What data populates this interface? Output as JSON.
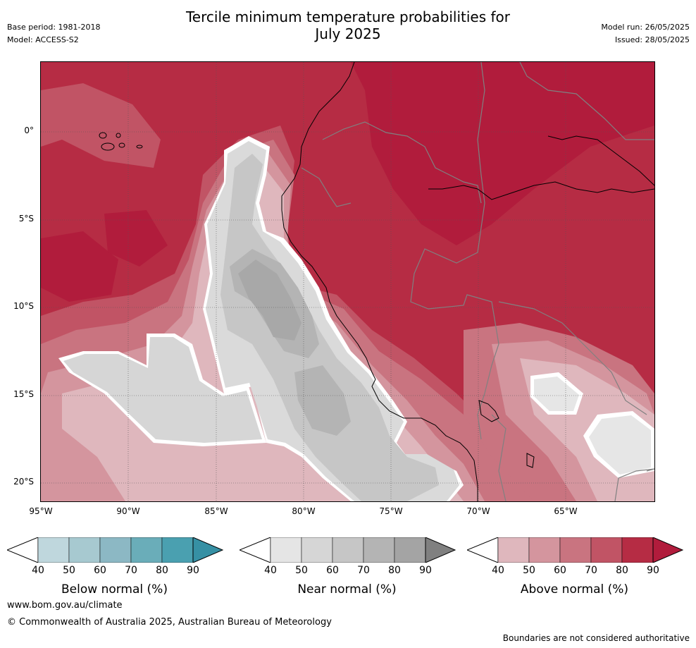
{
  "header": {
    "title_line1": "Tercile minimum temperature probabilities for",
    "title_line2": "July 2025",
    "base_period": "Base period: 1981-2018",
    "model": "Model: ACCESS-S2",
    "model_run": "Model run: 26/05/2025",
    "issued": "Issued: 28/05/2025"
  },
  "map": {
    "lat_labels": [
      "0°",
      "5°S",
      "10°S",
      "15°S",
      "20°S"
    ],
    "lon_labels": [
      "95°W",
      "90°W",
      "85°W",
      "80°W",
      "75°W",
      "70°W",
      "65°W"
    ],
    "colors": {
      "above": [
        "#dfb7bd",
        "#d4959e",
        "#c97480",
        "#c15465",
        "#b62c44",
        "#b11c3c"
      ],
      "near": [
        "#e6e6e6",
        "#d6d6d6",
        "#c6c6c6",
        "#b4b4b4",
        "#a6a6a6"
      ],
      "below": [
        "#bfd7dd",
        "#a7c9d0",
        "#8cb8c4",
        "#6aadb9",
        "#4aa0b0",
        "#3690a4"
      ]
    }
  },
  "legends": [
    {
      "title": "Below normal (%)",
      "ticks": [
        "40",
        "50",
        "60",
        "70",
        "80",
        "90"
      ],
      "colors": [
        "#bfd7dd",
        "#a7c9d0",
        "#8cb8c4",
        "#6aadb9",
        "#4aa0b0"
      ],
      "end": "#3690a4"
    },
    {
      "title": "Near normal (%)",
      "ticks": [
        "40",
        "50",
        "60",
        "70",
        "80",
        "90"
      ],
      "colors": [
        "#e5e5e5",
        "#d6d6d6",
        "#c6c6c6",
        "#b4b4b4",
        "#a4a4a4"
      ],
      "end": "#808080"
    },
    {
      "title": "Above normal (%)",
      "ticks": [
        "40",
        "50",
        "60",
        "70",
        "80",
        "90"
      ],
      "colors": [
        "#dfb7bd",
        "#d4959e",
        "#c97480",
        "#c15465",
        "#b62c44"
      ],
      "end": "#b11c3c"
    }
  ],
  "footer": {
    "url": "www.bom.gov.au/climate",
    "copyright": "© Commonwealth of Australia 2025, Australian Bureau of Meteorology",
    "disclaimer": "Boundaries are not considered authoritative"
  }
}
